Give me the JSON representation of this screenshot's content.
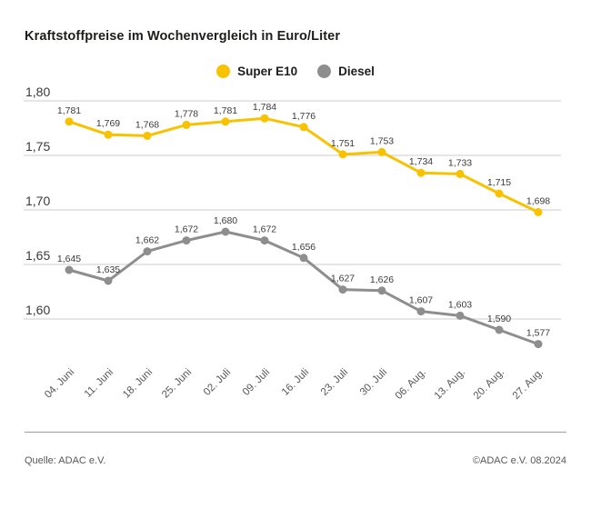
{
  "title": "Kraftstoffpreise im Wochenvergleich in Euro/Liter",
  "legend": [
    {
      "label": "Super E10",
      "color": "#f8c200"
    },
    {
      "label": "Diesel",
      "color": "#8e8e8e"
    }
  ],
  "footer": {
    "source": "Quelle: ADAC e.V.",
    "copyright": "©ADAC e.V. 08.2024"
  },
  "colors": {
    "super_e10": "#f8c200",
    "diesel": "#8e8e8e",
    "gridline": "#cccccc",
    "value_label": "#3a3a39",
    "tick_label": "#3a3a39",
    "date_label": "#575756"
  },
  "chart_data": {
    "type": "line",
    "title": "Kraftstoffpreise im Wochenvergleich in Euro/Liter",
    "xlabel": "",
    "ylabel": "",
    "unit": "Euro/Liter",
    "decimal_separator": ",",
    "grid": true,
    "legend_position": "top",
    "ylim": [
      1.6,
      1.8
    ],
    "ytick_values": [
      1.8,
      1.75,
      1.7,
      1.65,
      1.6
    ],
    "ytick_labels": [
      "1,80",
      "1,75",
      "1,70",
      "1,65",
      "1,60"
    ],
    "categories": [
      "04. Juni",
      "11. Juni",
      "18. Juni",
      "25. Juni",
      "02. Juli",
      "09. Juli",
      "16. Juli",
      "23. Juli",
      "30. Juli",
      "06. Aug.",
      "13. Aug.",
      "20. Aug.",
      "27. Aug."
    ],
    "series": [
      {
        "name": "Super E10",
        "color": "#f8c200",
        "values": [
          1.781,
          1.769,
          1.768,
          1.778,
          1.781,
          1.784,
          1.776,
          1.751,
          1.753,
          1.734,
          1.733,
          1.715,
          1.698
        ],
        "value_labels": [
          "1,781",
          "1,769",
          "1,768",
          "1,778",
          "1,781",
          "1,784",
          "1,776",
          "1,751",
          "1,753",
          "1,734",
          "1,733",
          "1,715",
          "1,698"
        ]
      },
      {
        "name": "Diesel",
        "color": "#8e8e8e",
        "values": [
          1.645,
          1.635,
          1.662,
          1.672,
          1.68,
          1.672,
          1.656,
          1.627,
          1.626,
          1.607,
          1.603,
          1.59,
          1.577
        ],
        "value_labels": [
          "1,645",
          "1,635",
          "1,662",
          "1,672",
          "1,680",
          "1,672",
          "1,656",
          "1,627",
          "1,626",
          "1,607",
          "1,603",
          "1,590",
          "1,577"
        ]
      }
    ]
  }
}
